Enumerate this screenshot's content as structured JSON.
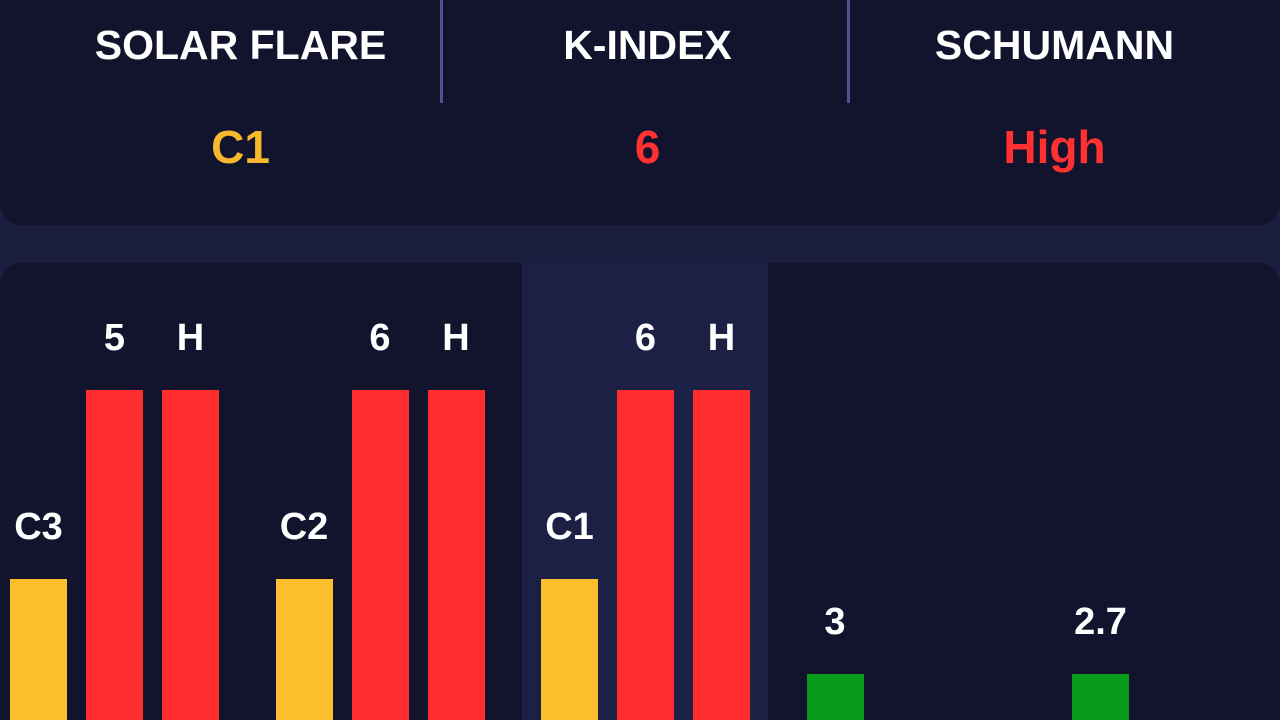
{
  "header": {
    "columns": [
      {
        "title": "SOLAR FLARE",
        "value": "C1",
        "color": "#f6b92e"
      },
      {
        "title": "K-INDEX",
        "value": "6",
        "color": "#ff3131"
      },
      {
        "title": "SCHUMANN",
        "value": "High",
        "color": "#ff3131"
      }
    ]
  },
  "history": {
    "groups": [
      {
        "bars": [
          {
            "label": "C3",
            "color": "#fbbf2d"
          },
          {
            "label": "5",
            "color": "#ff2d2d"
          },
          {
            "label": "H",
            "color": "#ff2d2d"
          }
        ]
      },
      {
        "bars": [
          {
            "label": "C2",
            "color": "#fbbf2d"
          },
          {
            "label": "6",
            "color": "#ff2d2d"
          },
          {
            "label": "H",
            "color": "#ff2d2d"
          }
        ]
      },
      {
        "bars": [
          {
            "label": "C1",
            "color": "#fbbf2d"
          },
          {
            "label": "6",
            "color": "#ff2d2d"
          },
          {
            "label": "H",
            "color": "#ff2d2d"
          }
        ],
        "selected": true
      },
      {
        "bars": [
          {
            "label": "3",
            "color": "#0a9a1a"
          }
        ]
      },
      {
        "bars": [
          {
            "label": "2.7",
            "color": "#0a9a1a"
          }
        ]
      }
    ]
  }
}
